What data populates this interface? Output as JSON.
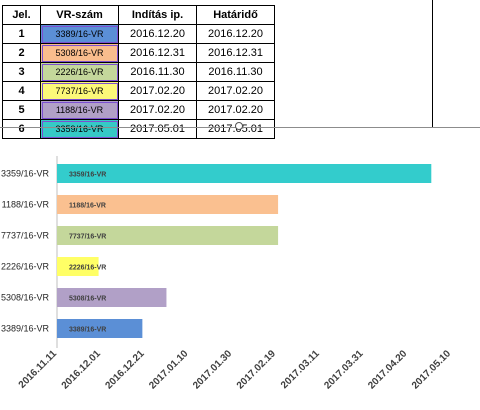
{
  "table": {
    "headers": [
      "Jel.",
      "VR-szám",
      "Indítás ip.",
      "Határidő"
    ],
    "rows": [
      {
        "jel": "1",
        "vr": "3389/16-VR",
        "start": "2016.12.20",
        "deadline": "2016.12.20",
        "color": "#5b8fd6"
      },
      {
        "jel": "2",
        "vr": "5308/16-VR",
        "start": "2016.12.31",
        "deadline": "2016.12.31",
        "color": "#f9bd8d"
      },
      {
        "jel": "3",
        "vr": "2226/16-VR",
        "start": "2016.11.30",
        "deadline": "2016.11.30",
        "color": "#c4d79b"
      },
      {
        "jel": "4",
        "vr": "7737/16-VR",
        "start": "2017.02.20",
        "deadline": "2017.02.20",
        "color": "#fcf879"
      },
      {
        "jel": "5",
        "vr": "1188/16-VR",
        "start": "2017.02.20",
        "deadline": "2017.02.20",
        "color": "#b1a0c7"
      },
      {
        "jel": "6",
        "vr": "3359/16-VR",
        "start": "2017.05.01",
        "deadline": "2017.05.01",
        "color": "#36c9c6"
      }
    ]
  },
  "chart_data": {
    "type": "bar",
    "orientation": "horizontal",
    "x_start": "2016.11.11",
    "categories": [
      "3359/16-VR",
      "1188/16-VR",
      "7737/16-VR",
      "2226/16-VR",
      "5308/16-VR",
      "3389/16-VR"
    ],
    "bars": [
      {
        "category": "3359/16-VR",
        "label": "3359/16-VR",
        "end": "2017.05.01",
        "color": "#33cccc"
      },
      {
        "category": "1188/16-VR",
        "label": "1188/16-VR",
        "end": "2017.02.20",
        "color": "#fac090"
      },
      {
        "category": "7737/16-VR",
        "label": "7737/16-VR",
        "end": "2017.02.20",
        "color": "#c4d79b"
      },
      {
        "category": "2226/16-VR",
        "label": "2226/16-VR",
        "end": "2016.11.30",
        "color": "#ffff66"
      },
      {
        "category": "5308/16-VR",
        "label": "5308/16-VR",
        "end": "2016.12.31",
        "color": "#b1a0c7"
      },
      {
        "category": "3389/16-VR",
        "label": "3389/16-VR",
        "end": "2016.12.20",
        "color": "#5b8fd6"
      }
    ],
    "x_ticks": [
      "2016.11.11",
      "2016.12.01",
      "2016.12.21",
      "2017.01.10",
      "2017.01.30",
      "2017.02.19",
      "2017.03.11",
      "2017.03.31",
      "2017.04.20",
      "2017.05.10"
    ],
    "xlim": [
      "2016.11.11",
      "2017.05.10"
    ],
    "grid": false,
    "legend": "none",
    "title": "",
    "xlabel": "",
    "ylabel": ""
  }
}
